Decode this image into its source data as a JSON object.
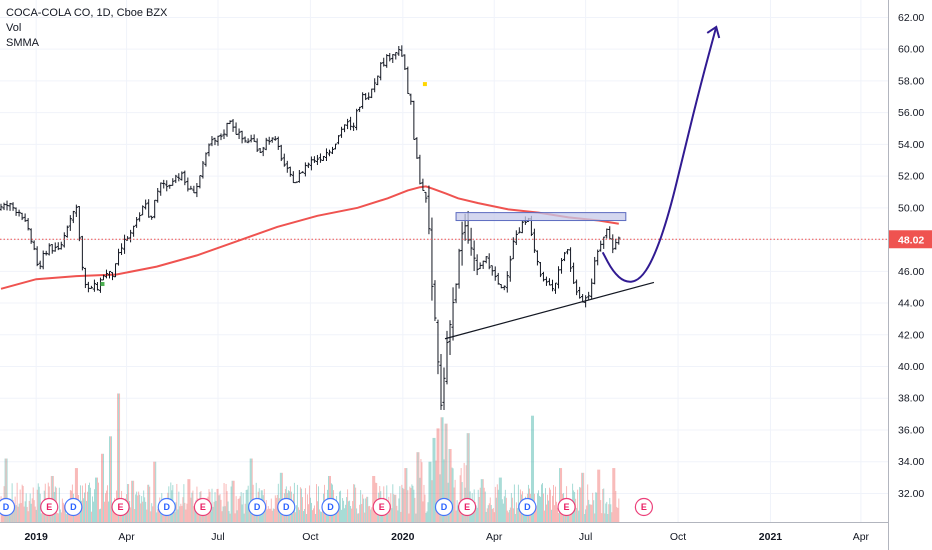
{
  "legend": {
    "symbol": "COCA-COLA CO, 1D, Cboe BZX",
    "volume": "Vol",
    "indicator": "SMMA"
  },
  "colors": {
    "up": "#26a69a",
    "bar": "#131722",
    "smma": "#ef5350",
    "current_price": "#ef5350",
    "forecast": "#311b92",
    "resistance_fill": "#c5cae9",
    "resistance_stroke": "#5c6bc0",
    "dividend": "#2962ff",
    "earnings": "#e91e63"
  },
  "price_label": "48.02",
  "chart_data": {
    "type": "ohlc",
    "title": "COCA-COLA CO, 1D, Cboe BZX",
    "y_ticks": [
      "62.00",
      "60.00",
      "58.00",
      "56.00",
      "54.00",
      "52.00",
      "50.00",
      "48.00",
      "46.00",
      "44.00",
      "42.00",
      "40.00",
      "38.00",
      "36.00",
      "34.00",
      "32.00"
    ],
    "ylim": [
      30.2,
      63.1
    ],
    "x_ticks": [
      {
        "label": "2019",
        "t": 0,
        "bold": true
      },
      {
        "label": "Apr",
        "t": 90
      },
      {
        "label": "Jul",
        "t": 181
      },
      {
        "label": "Oct",
        "t": 273
      },
      {
        "label": "2020",
        "t": 365,
        "bold": true
      },
      {
        "label": "Apr",
        "t": 456
      },
      {
        "label": "Jul",
        "t": 547
      },
      {
        "label": "Oct",
        "t": 639
      },
      {
        "label": "2021",
        "t": 731,
        "bold": true
      },
      {
        "label": "Apr",
        "t": 821
      }
    ],
    "xlim": [
      -36,
      848
    ],
    "price_path": [
      [
        -35,
        49.9
      ],
      [
        -25,
        50.2
      ],
      [
        -12,
        49.7
      ],
      [
        -4,
        48.3
      ],
      [
        2,
        47.2
      ],
      [
        6,
        45.8
      ],
      [
        10,
        47.0
      ],
      [
        16,
        47.6
      ],
      [
        24,
        47.2
      ],
      [
        30,
        48.0
      ],
      [
        36,
        49.4
      ],
      [
        43,
        50.0
      ],
      [
        46,
        48.3
      ],
      [
        50,
        45.5
      ],
      [
        54,
        44.7
      ],
      [
        58,
        45.0
      ],
      [
        64,
        45.0
      ],
      [
        70,
        45.8
      ],
      [
        80,
        45.8
      ],
      [
        86,
        47.2
      ],
      [
        92,
        48.0
      ],
      [
        98,
        48.4
      ],
      [
        104,
        49.2
      ],
      [
        112,
        50.4
      ],
      [
        116,
        49.0
      ],
      [
        122,
        50.6
      ],
      [
        128,
        51.6
      ],
      [
        134,
        51.3
      ],
      [
        140,
        52.0
      ],
      [
        148,
        52.0
      ],
      [
        156,
        51.0
      ],
      [
        162,
        51.2
      ],
      [
        170,
        52.8
      ],
      [
        176,
        54.1
      ],
      [
        182,
        54.2
      ],
      [
        190,
        54.8
      ],
      [
        196,
        55.6
      ],
      [
        202,
        54.8
      ],
      [
        210,
        54.2
      ],
      [
        218,
        54.3
      ],
      [
        226,
        53.6
      ],
      [
        234,
        54.4
      ],
      [
        242,
        54.1
      ],
      [
        250,
        52.7
      ],
      [
        256,
        51.9
      ],
      [
        262,
        51.7
      ],
      [
        270,
        52.6
      ],
      [
        278,
        53.0
      ],
      [
        286,
        53.2
      ],
      [
        294,
        53.6
      ],
      [
        302,
        54.2
      ],
      [
        308,
        55.2
      ],
      [
        314,
        55.3
      ],
      [
        318,
        54.7
      ],
      [
        322,
        56.0
      ],
      [
        328,
        57.0
      ],
      [
        334,
        57.2
      ],
      [
        340,
        58.0
      ],
      [
        346,
        59.0
      ],
      [
        352,
        59.4
      ],
      [
        358,
        59.8
      ],
      [
        364,
        59.9
      ],
      [
        368,
        59.6
      ],
      [
        372,
        57.5
      ],
      [
        376,
        56.5
      ],
      [
        378,
        55.2
      ],
      [
        380,
        53.5
      ],
      [
        383,
        52.7
      ],
      [
        386,
        51.3
      ],
      [
        390,
        51.0
      ],
      [
        394,
        48.0
      ],
      [
        398,
        44.0
      ],
      [
        402,
        41.5
      ],
      [
        404,
        38.8
      ],
      [
        406,
        37.5
      ],
      [
        410,
        40.0
      ],
      [
        414,
        43.0
      ],
      [
        418,
        44.0
      ],
      [
        422,
        45.8
      ],
      [
        426,
        48.0
      ],
      [
        432,
        48.5
      ],
      [
        438,
        46.7
      ],
      [
        444,
        46.0
      ],
      [
        450,
        47.0
      ],
      [
        456,
        46.0
      ],
      [
        462,
        45.3
      ],
      [
        468,
        44.8
      ],
      [
        474,
        46.5
      ],
      [
        478,
        48.0
      ],
      [
        484,
        48.5
      ],
      [
        490,
        49.3
      ],
      [
        494,
        49.6
      ],
      [
        498,
        47.4
      ],
      [
        502,
        46.6
      ],
      [
        506,
        45.5
      ],
      [
        510,
        45.3
      ],
      [
        516,
        44.9
      ],
      [
        520,
        45.4
      ],
      [
        526,
        46.8
      ],
      [
        532,
        47.4
      ],
      [
        538,
        45.2
      ],
      [
        543,
        44.6
      ],
      [
        548,
        44.2
      ],
      [
        554,
        44.6
      ],
      [
        560,
        46.8
      ],
      [
        566,
        48.0
      ],
      [
        572,
        48.7
      ],
      [
        576,
        47.4
      ],
      [
        580,
        48.0
      ]
    ],
    "bar_stride": 3,
    "smma": [
      [
        -35,
        44.9
      ],
      [
        0,
        45.5
      ],
      [
        40,
        45.7
      ],
      [
        80,
        45.8
      ],
      [
        120,
        46.3
      ],
      [
        160,
        47.0
      ],
      [
        200,
        47.9
      ],
      [
        240,
        48.8
      ],
      [
        280,
        49.5
      ],
      [
        320,
        50.0
      ],
      [
        350,
        50.6
      ],
      [
        370,
        51.1
      ],
      [
        382,
        51.3
      ],
      [
        388,
        51.35
      ],
      [
        395,
        51.2
      ],
      [
        408,
        50.9
      ],
      [
        420,
        50.6
      ],
      [
        440,
        50.3
      ],
      [
        470,
        49.9
      ],
      [
        500,
        49.7
      ],
      [
        530,
        49.4
      ],
      [
        560,
        49.2
      ],
      [
        580,
        49.0
      ]
    ],
    "volume": {
      "base": 30.2,
      "typical": [
        30.7,
        32.7
      ],
      "spikes": [
        [
          -30,
          34.2
        ],
        [
          16,
          33.1
        ],
        [
          40,
          33.6
        ],
        [
          60,
          33.0
        ],
        [
          66,
          34.5
        ],
        [
          74,
          35.6
        ],
        [
          82,
          38.3
        ],
        [
          96,
          32.8
        ],
        [
          118,
          34.0
        ],
        [
          152,
          32.9
        ],
        [
          196,
          32.8
        ],
        [
          214,
          34.2
        ],
        [
          244,
          33.3
        ],
        [
          292,
          33.1
        ],
        [
          336,
          33.1
        ],
        [
          368,
          33.6
        ],
        [
          380,
          34.6
        ],
        [
          392,
          34.0
        ],
        [
          396,
          35.5
        ],
        [
          400,
          36.1
        ],
        [
          404,
          36.8
        ],
        [
          408,
          36.4
        ],
        [
          412,
          34.8
        ],
        [
          430,
          35.8
        ],
        [
          444,
          32.9
        ],
        [
          462,
          33.0
        ],
        [
          494,
          36.9
        ],
        [
          522,
          33.6
        ],
        [
          544,
          33.3
        ],
        [
          560,
          33.5
        ],
        [
          575,
          33.6
        ]
      ]
    },
    "current_price": 48.02,
    "markers": [
      {
        "t": 387,
        "price": 57.8,
        "color": "#ffd600"
      },
      {
        "t": 66,
        "price": 45.2,
        "color": "#4caf50"
      }
    ],
    "triangle_support": {
      "from": [
        407,
        41.75
      ],
      "to": [
        615,
        45.3
      ]
    },
    "resistance_box": {
      "from": [
        418,
        49.2
      ],
      "to": [
        587,
        49.7
      ]
    },
    "forecast_curve": [
      [
        564,
        47.2
      ],
      [
        574,
        46.0
      ],
      [
        586,
        45.3
      ],
      [
        600,
        45.4
      ],
      [
        614,
        46.7
      ],
      [
        630,
        49.6
      ],
      [
        646,
        53.8
      ],
      [
        662,
        57.9
      ],
      [
        677,
        61.4
      ]
    ],
    "events": [
      {
        "t": -30,
        "kind": "D"
      },
      {
        "t": 13,
        "kind": "E"
      },
      {
        "t": 37,
        "kind": "D"
      },
      {
        "t": 84,
        "kind": "E"
      },
      {
        "t": 130,
        "kind": "D"
      },
      {
        "t": 166,
        "kind": "E"
      },
      {
        "t": 220,
        "kind": "D"
      },
      {
        "t": 249,
        "kind": "D"
      },
      {
        "t": 293,
        "kind": "D"
      },
      {
        "t": 344,
        "kind": "E"
      },
      {
        "t": 406,
        "kind": "D"
      },
      {
        "t": 429,
        "kind": "E"
      },
      {
        "t": 489,
        "kind": "D"
      },
      {
        "t": 528,
        "kind": "E"
      },
      {
        "t": 605,
        "kind": "E"
      }
    ]
  }
}
